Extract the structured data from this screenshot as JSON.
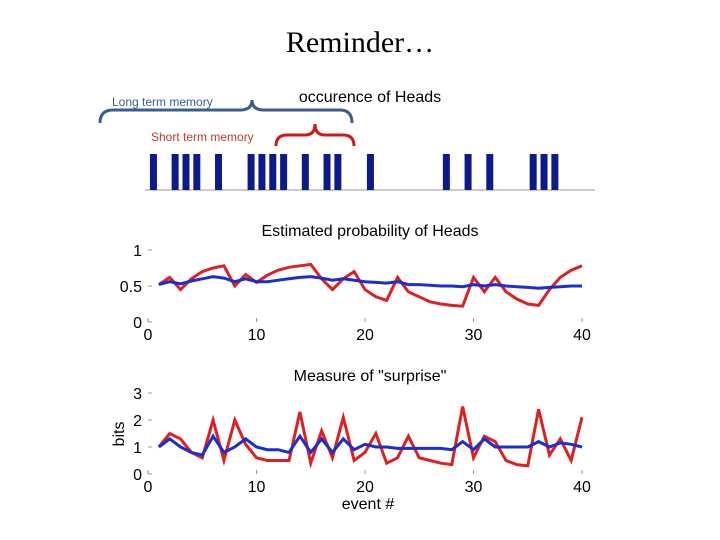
{
  "slide": {
    "title": "Reminder…",
    "long_term_label": "Long term memory",
    "short_term_label": "Short term memory"
  },
  "colors": {
    "short_term": "#e02020",
    "long_term": "#1a2fd0",
    "heads_bar": "#0c1a8c",
    "long_brace": "#3a5f8f",
    "short_brace": "#d01818"
  },
  "chart_data": [
    {
      "type": "bar",
      "title": "occurence of Heads",
      "xlim": [
        0,
        40
      ],
      "heads_events": [
        1,
        3,
        4,
        5,
        7,
        10,
        11,
        12,
        13,
        15,
        17,
        18,
        21,
        28,
        30,
        32,
        36,
        37,
        38
      ]
    },
    {
      "type": "line",
      "title": "Estimated probability of Heads",
      "xlim": [
        0,
        40
      ],
      "ylim": [
        0,
        1
      ],
      "xticks": [
        0,
        10,
        20,
        30,
        40
      ],
      "yticks": [
        0,
        0.5,
        1
      ],
      "ytick_labels": [
        "0",
        "0.5",
        "1"
      ],
      "x": [
        1,
        2,
        3,
        4,
        5,
        6,
        7,
        8,
        9,
        10,
        11,
        12,
        13,
        14,
        15,
        16,
        17,
        18,
        19,
        20,
        21,
        22,
        23,
        24,
        25,
        26,
        27,
        28,
        29,
        30,
        31,
        32,
        33,
        34,
        35,
        36,
        37,
        38,
        39,
        40
      ],
      "series": [
        {
          "key": "short_term",
          "values": [
            0.52,
            0.62,
            0.45,
            0.6,
            0.7,
            0.75,
            0.78,
            0.5,
            0.66,
            0.55,
            0.65,
            0.72,
            0.76,
            0.78,
            0.8,
            0.6,
            0.45,
            0.6,
            0.7,
            0.45,
            0.35,
            0.3,
            0.62,
            0.42,
            0.35,
            0.28,
            0.25,
            0.23,
            0.22,
            0.62,
            0.42,
            0.62,
            0.42,
            0.32,
            0.25,
            0.23,
            0.45,
            0.62,
            0.72,
            0.78
          ]
        },
        {
          "key": "long_term",
          "values": [
            0.52,
            0.56,
            0.53,
            0.57,
            0.6,
            0.63,
            0.61,
            0.56,
            0.6,
            0.56,
            0.56,
            0.58,
            0.6,
            0.62,
            0.63,
            0.61,
            0.58,
            0.6,
            0.58,
            0.56,
            0.55,
            0.54,
            0.56,
            0.52,
            0.52,
            0.51,
            0.5,
            0.5,
            0.49,
            0.52,
            0.5,
            0.52,
            0.5,
            0.49,
            0.48,
            0.47,
            0.48,
            0.49,
            0.5,
            0.5
          ]
        }
      ]
    },
    {
      "type": "line",
      "title": "Measure of \"surprise\"",
      "xlabel": "event #",
      "ylabel": "bits",
      "xlim": [
        0,
        40
      ],
      "ylim": [
        0,
        3
      ],
      "xticks": [
        0,
        10,
        20,
        30,
        40
      ],
      "yticks": [
        0,
        1,
        2,
        3
      ],
      "x": [
        1,
        2,
        3,
        4,
        5,
        6,
        7,
        8,
        9,
        10,
        11,
        12,
        13,
        14,
        15,
        16,
        17,
        18,
        19,
        20,
        21,
        22,
        23,
        24,
        25,
        26,
        27,
        28,
        29,
        30,
        31,
        32,
        33,
        34,
        35,
        36,
        37,
        38,
        39,
        40
      ],
      "series": [
        {
          "key": "short_term",
          "values": [
            1.0,
            1.5,
            1.3,
            0.8,
            0.6,
            2.0,
            0.5,
            2.0,
            1.1,
            0.6,
            0.5,
            0.5,
            0.5,
            2.3,
            0.4,
            1.6,
            0.6,
            2.1,
            0.5,
            0.8,
            1.5,
            0.4,
            0.6,
            1.4,
            0.6,
            0.5,
            0.4,
            0.35,
            2.5,
            0.6,
            1.4,
            1.2,
            0.5,
            0.35,
            0.3,
            2.4,
            0.7,
            1.3,
            0.5,
            2.1
          ]
        },
        {
          "key": "long_term",
          "values": [
            1.0,
            1.3,
            1.0,
            0.8,
            0.7,
            1.4,
            0.8,
            1.0,
            1.3,
            1.0,
            0.9,
            0.9,
            0.8,
            1.4,
            0.8,
            1.3,
            0.8,
            1.3,
            0.9,
            1.1,
            1.0,
            1.0,
            0.95,
            0.95,
            0.95,
            0.95,
            0.95,
            0.9,
            1.2,
            0.9,
            1.3,
            1.0,
            1.0,
            1.0,
            1.0,
            1.2,
            1.0,
            1.15,
            1.1,
            1.0
          ]
        }
      ]
    }
  ]
}
